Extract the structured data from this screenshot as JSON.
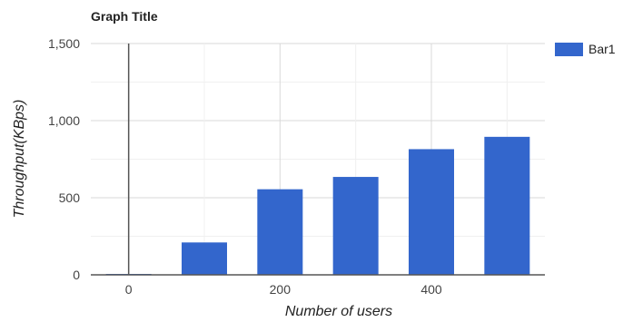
{
  "chart_data": {
    "type": "bar",
    "title": "Graph Title",
    "xlabel": "Number of users",
    "ylabel": "Throughput(KBps)",
    "x_axis": {
      "range": [
        -50,
        550
      ],
      "ticks": [
        0,
        200,
        400
      ],
      "tick_labels": [
        "0",
        "200",
        "400"
      ]
    },
    "y_axis": {
      "range": [
        0,
        1500
      ],
      "ticks": [
        0,
        500,
        1000,
        1500
      ],
      "tick_labels": [
        "0",
        "500",
        "1,000",
        "1,500"
      ],
      "minor_gridlines": [
        250,
        750,
        1250
      ]
    },
    "grid": true,
    "legend": {
      "position": "top-right",
      "entries": [
        "Bar1"
      ]
    },
    "series": [
      {
        "name": "Bar1",
        "color": "#3366cc",
        "x": [
          0,
          100,
          200,
          300,
          400,
          500
        ],
        "values": [
          0,
          210,
          555,
          635,
          815,
          895
        ]
      }
    ]
  }
}
